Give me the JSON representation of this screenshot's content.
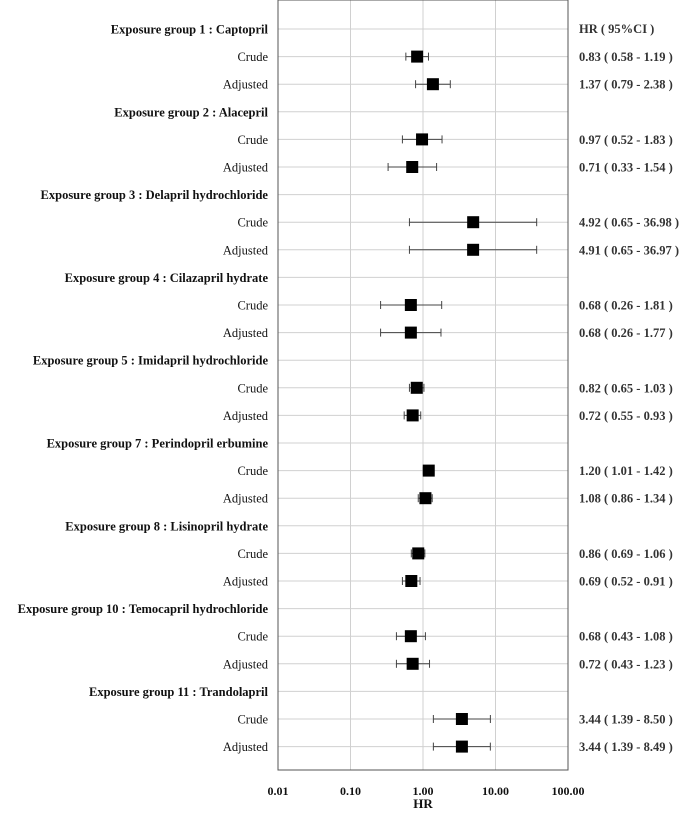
{
  "chart_data": {
    "type": "forest",
    "xlabel": "HR",
    "x_scale": "log",
    "xlim": [
      0.01,
      100
    ],
    "x_ticks": [
      "0.01",
      "0.10",
      "1.00",
      "10.00",
      "100.00"
    ],
    "x_tick_values": [
      0.01,
      0.1,
      1,
      10,
      100
    ],
    "right_header": "HR ( 95%CI )",
    "grid": true,
    "groups": [
      {
        "label": "Exposure group 1 : Captopril",
        "rows": [
          {
            "label": "Crude",
            "hr": 0.83,
            "lo": 0.58,
            "hi": 1.19,
            "text": "0.83 ( 0.58 - 1.19 )"
          },
          {
            "label": "Adjusted",
            "hr": 1.37,
            "lo": 0.79,
            "hi": 2.38,
            "text": "1.37 ( 0.79 - 2.38 )"
          }
        ]
      },
      {
        "label": "Exposure group 2 : Alacepril",
        "rows": [
          {
            "label": "Crude",
            "hr": 0.97,
            "lo": 0.52,
            "hi": 1.83,
            "text": "0.97 ( 0.52 - 1.83 )"
          },
          {
            "label": "Adjusted",
            "hr": 0.71,
            "lo": 0.33,
            "hi": 1.54,
            "text": "0.71 ( 0.33 - 1.54 )"
          }
        ]
      },
      {
        "label": "Exposure group 3 : Delapril hydrochloride",
        "rows": [
          {
            "label": "Crude",
            "hr": 4.92,
            "lo": 0.65,
            "hi": 36.98,
            "text": "4.92 ( 0.65 - 36.98 )"
          },
          {
            "label": "Adjusted",
            "hr": 4.91,
            "lo": 0.65,
            "hi": 36.97,
            "text": "4.91 ( 0.65 - 36.97 )"
          }
        ]
      },
      {
        "label": "Exposure group 4 : Cilazapril hydrate",
        "rows": [
          {
            "label": "Crude",
            "hr": 0.68,
            "lo": 0.26,
            "hi": 1.81,
            "text": "0.68 ( 0.26 - 1.81 )"
          },
          {
            "label": "Adjusted",
            "hr": 0.68,
            "lo": 0.26,
            "hi": 1.77,
            "text": "0.68 ( 0.26 - 1.77 )"
          }
        ]
      },
      {
        "label": "Exposure group 5 : Imidapril hydrochloride",
        "rows": [
          {
            "label": "Crude",
            "hr": 0.82,
            "lo": 0.65,
            "hi": 1.03,
            "text": "0.82 ( 0.65 - 1.03 )"
          },
          {
            "label": "Adjusted",
            "hr": 0.72,
            "lo": 0.55,
            "hi": 0.93,
            "text": "0.72 ( 0.55 - 0.93 )"
          }
        ]
      },
      {
        "label": "Exposure group 7 : Perindopril erbumine",
        "rows": [
          {
            "label": "Crude",
            "hr": 1.2,
            "lo": 1.01,
            "hi": 1.42,
            "text": "1.20 ( 1.01 - 1.42 )"
          },
          {
            "label": "Adjusted",
            "hr": 1.08,
            "lo": 0.86,
            "hi": 1.34,
            "text": "1.08 ( 0.86 - 1.34 )"
          }
        ]
      },
      {
        "label": "Exposure group 8 : Lisinopril hydrate",
        "rows": [
          {
            "label": "Crude",
            "hr": 0.86,
            "lo": 0.69,
            "hi": 1.06,
            "text": "0.86 ( 0.69 - 1.06 )"
          },
          {
            "label": "Adjusted",
            "hr": 0.69,
            "lo": 0.52,
            "hi": 0.91,
            "text": "0.69 ( 0.52 - 0.91 )"
          }
        ]
      },
      {
        "label": "Exposure group 10 : Temocapril hydrochloride",
        "rows": [
          {
            "label": "Crude",
            "hr": 0.68,
            "lo": 0.43,
            "hi": 1.08,
            "text": "0.68 ( 0.43 - 1.08 )"
          },
          {
            "label": "Adjusted",
            "hr": 0.72,
            "lo": 0.43,
            "hi": 1.23,
            "text": "0.72 ( 0.43 - 1.23 )"
          }
        ]
      },
      {
        "label": "Exposure group 11 : Trandolapril",
        "rows": [
          {
            "label": "Crude",
            "hr": 3.44,
            "lo": 1.39,
            "hi": 8.5,
            "text": "3.44 ( 1.39 - 8.50 )"
          },
          {
            "label": "Adjusted",
            "hr": 3.44,
            "lo": 1.39,
            "hi": 8.49,
            "text": "3.44 ( 1.39 - 8.49 )"
          }
        ]
      }
    ],
    "colors": {
      "marker": "#000000",
      "grid": "#d0d0d0",
      "frame": "#555555"
    }
  }
}
